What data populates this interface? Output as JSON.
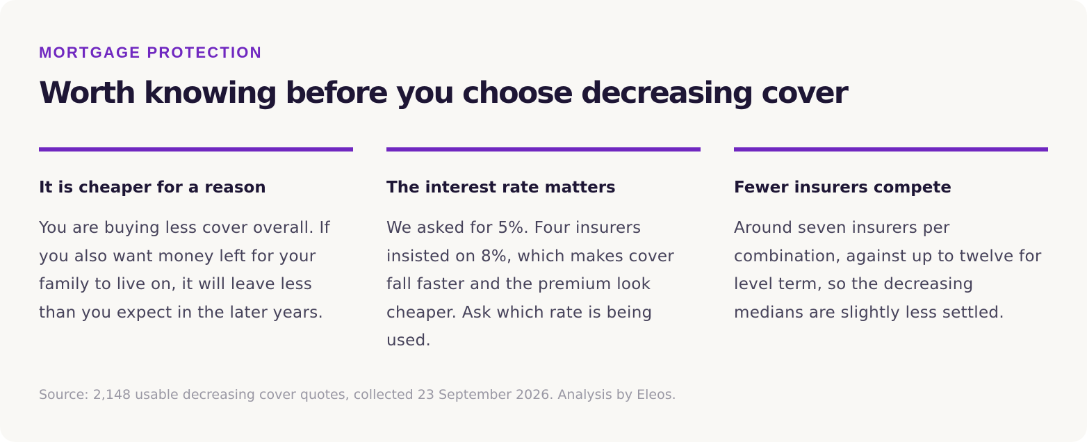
{
  "header": {
    "eyebrow": "MORTGAGE PROTECTION",
    "title": "Worth knowing before you choose decreasing cover"
  },
  "columns": [
    {
      "heading": "It is cheaper for a reason",
      "body": "You are buying less cover overall. If you also want money left for your family to live on, it will leave less than you expect in the later years."
    },
    {
      "heading": "The interest rate matters",
      "body": "We asked for 5%. Four insurers insisted on 8%, which makes cover fall faster and the premium look cheaper. Ask which rate is being used."
    },
    {
      "heading": "Fewer insurers compete",
      "body": "Around seven insurers per combination, against up to twelve for level term, so the decreasing medians are slightly less settled."
    }
  ],
  "footer": {
    "source": "Source: 2,148 usable decreasing cover quotes, collected 23 September 2026. Analysis by Eleos."
  },
  "colors": {
    "accent": "#7028c0",
    "heading": "#1e1635",
    "body": "#46425a",
    "muted": "#9a98a4",
    "background": "#f9f8f5"
  }
}
